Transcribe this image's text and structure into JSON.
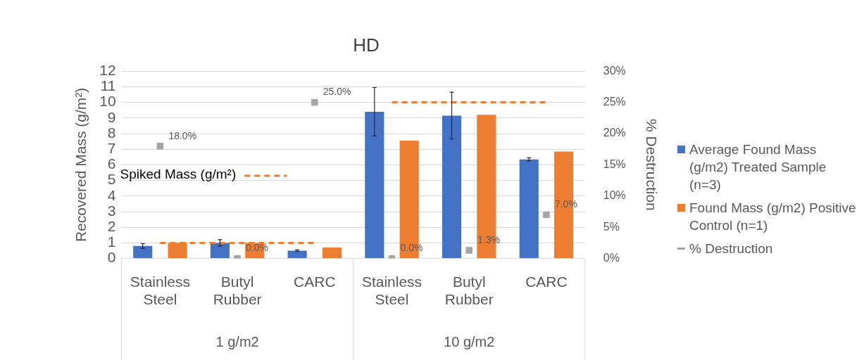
{
  "chart_data": {
    "type": "bar",
    "title": "HD",
    "ylabel": "Recovered Mass (g/m²)",
    "y2label": "% Destruction",
    "categories": [
      "Stainless Steel",
      "Butyl Rubber",
      "CARC",
      "Stainless Steel",
      "Butyl Rubber",
      "CARC"
    ],
    "series": [
      {
        "name": "Average Found Mass (g/m2) Treated Sample (n=3)",
        "type": "bar",
        "color": "#4472c4",
        "values": [
          0.8,
          1.0,
          0.5,
          9.4,
          9.15,
          6.35
        ],
        "errors": [
          0.15,
          0.2,
          0.05,
          1.55,
          1.5,
          0.1
        ]
      },
      {
        "name": "Found Mass (g/m2) Positive Control (n=1)",
        "type": "bar",
        "color": "#ed7d31",
        "values": [
          1.0,
          1.0,
          0.7,
          7.55,
          9.2,
          6.85
        ]
      },
      {
        "type": "line",
        "color": "#ed7d31",
        "line_style": "dashed",
        "marker": "none",
        "values": [
          1,
          1,
          1,
          10,
          10,
          10
        ]
      },
      {
        "name": "% Destruction",
        "type": "scatter",
        "axis": "y2",
        "color": "#a5a5a5",
        "marker": "square",
        "values": [
          18.0,
          0.0,
          25.0,
          0.0,
          1.3,
          7.0
        ],
        "value_labels": [
          "18.0%",
          "0.0%",
          "25.0%",
          "0.0%",
          "1.3%",
          "7.0%"
        ]
      }
    ],
    "ylim": [
      0,
      12
    ],
    "yticks": [
      0,
      1,
      2,
      3,
      4,
      5,
      6,
      7,
      8,
      9,
      10,
      11,
      12
    ],
    "y2lim": [
      0,
      30
    ],
    "y2ticks": [
      {
        "value": 0,
        "label": "0%"
      },
      {
        "value": 5,
        "label": "5%"
      },
      {
        "value": 10,
        "label": "10%"
      },
      {
        "value": 15,
        "label": "15%"
      },
      {
        "value": 20,
        "label": "20%"
      },
      {
        "value": 25,
        "label": "25%"
      },
      {
        "value": 30,
        "label": "30%"
      }
    ],
    "grid": "y",
    "legend": "right",
    "annotations": [
      "Spiked Mass (g/m²)",
      "1 g/m2",
      "10 g/m2"
    ]
  }
}
